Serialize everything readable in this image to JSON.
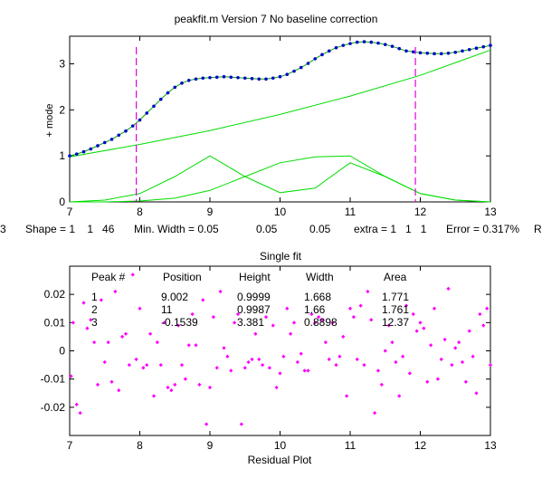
{
  "figure": {
    "background": "#ffffff",
    "colors": {
      "data": "#0000cc",
      "fit": "#00aa00",
      "components": "#00dd00",
      "markers": "#dd00dd",
      "residuals": "#ff00ff",
      "axis": "#000000"
    }
  },
  "top_title": "peakfit.m Version 7    No baseline correction",
  "param_line": {
    "left_cut": "3",
    "shape": "Shape = 1    1   46",
    "min_width": "Min. Width = 0.05",
    "w2": "0.05",
    "w3": "0.05",
    "extra": "extra = 1   1   1",
    "error": "Error = 0.317%",
    "right_cut": "R"
  },
  "bottom_title": "Single fit",
  "results_table": {
    "headers": [
      "Peak #",
      "Position",
      "Height",
      "Width",
      "Area"
    ],
    "rows": [
      [
        "1",
        "9.002",
        "0.9999",
        "1.668",
        "1.771"
      ],
      [
        "2",
        "11",
        "0.9987",
        "1.66",
        "1.761"
      ],
      [
        "3",
        "-0.1539",
        "3.381",
        "0.8898",
        "12.37"
      ]
    ]
  },
  "chart_data": [
    {
      "type": "line",
      "title": "peakfit.m Version 7    No baseline correction",
      "xlabel": "",
      "ylabel": "+ mode",
      "xlim": [
        7,
        13
      ],
      "ylim": [
        0,
        3.6
      ],
      "xticks": [
        7,
        8,
        9,
        10,
        11,
        12,
        13
      ],
      "yticks": [
        0,
        1,
        2,
        3
      ],
      "markers_x": [
        7.95,
        11.93
      ],
      "data_points": {
        "x": [
          7.0,
          7.1,
          7.2,
          7.3,
          7.4,
          7.5,
          7.6,
          7.7,
          7.8,
          7.9,
          8.0,
          8.1,
          8.2,
          8.3,
          8.4,
          8.5,
          8.6,
          8.7,
          8.8,
          8.9,
          9.0,
          9.1,
          9.2,
          9.3,
          9.4,
          9.5,
          9.6,
          9.7,
          9.8,
          9.9,
          10.0,
          10.1,
          10.2,
          10.3,
          10.4,
          10.5,
          10.6,
          10.7,
          10.8,
          10.9,
          11.0,
          11.1,
          11.2,
          11.3,
          11.4,
          11.5,
          11.6,
          11.7,
          11.8,
          11.9,
          12.0,
          12.1,
          12.2,
          12.3,
          12.4,
          12.5,
          12.6,
          12.7,
          12.8,
          12.9,
          13.0
        ],
        "y": [
          1.0,
          1.04,
          1.09,
          1.15,
          1.22,
          1.29,
          1.36,
          1.45,
          1.54,
          1.65,
          1.78,
          1.93,
          2.08,
          2.23,
          2.37,
          2.49,
          2.58,
          2.64,
          2.67,
          2.69,
          2.7,
          2.71,
          2.72,
          2.71,
          2.7,
          2.69,
          2.68,
          2.67,
          2.67,
          2.69,
          2.72,
          2.77,
          2.84,
          2.92,
          3.01,
          3.11,
          3.2,
          3.28,
          3.35,
          3.4,
          3.44,
          3.47,
          3.48,
          3.47,
          3.45,
          3.42,
          3.38,
          3.33,
          3.28,
          3.26,
          3.24,
          3.23,
          3.22,
          3.22,
          3.23,
          3.25,
          3.28,
          3.31,
          3.34,
          3.37,
          3.4
        ]
      },
      "series": [
        {
          "name": "",
          "kind": "fit",
          "x": [
            7.0,
            7.1,
            7.2,
            7.3,
            7.4,
            7.5,
            7.6,
            7.7,
            7.8,
            7.9,
            8.0,
            8.1,
            8.2,
            8.3,
            8.4,
            8.5,
            8.6,
            8.7,
            8.8,
            8.9,
            9.0,
            9.1,
            9.2,
            9.3,
            9.4,
            9.5,
            9.6,
            9.7,
            9.8,
            9.9,
            10.0,
            10.1,
            10.2,
            10.3,
            10.4,
            10.5,
            10.6,
            10.7,
            10.8,
            10.9,
            11.0,
            11.1,
            11.2,
            11.3,
            11.4,
            11.5,
            11.6,
            11.7,
            11.8,
            11.9,
            12.0,
            12.1,
            12.2,
            12.3,
            12.4,
            12.5,
            12.6,
            12.7,
            12.8,
            12.9,
            13.0
          ],
          "y": [
            1.0,
            1.04,
            1.09,
            1.15,
            1.22,
            1.29,
            1.36,
            1.45,
            1.54,
            1.65,
            1.78,
            1.93,
            2.08,
            2.23,
            2.37,
            2.49,
            2.58,
            2.64,
            2.67,
            2.69,
            2.7,
            2.71,
            2.72,
            2.71,
            2.7,
            2.69,
            2.68,
            2.67,
            2.67,
            2.69,
            2.72,
            2.77,
            2.84,
            2.92,
            3.01,
            3.11,
            3.2,
            3.28,
            3.35,
            3.4,
            3.44,
            3.47,
            3.48,
            3.47,
            3.45,
            3.42,
            3.38,
            3.33,
            3.28,
            3.26,
            3.24,
            3.23,
            3.22,
            3.22,
            3.23,
            3.25,
            3.28,
            3.31,
            3.34,
            3.37,
            3.4
          ]
        },
        {
          "name": "",
          "kind": "component",
          "x": [
            7.0,
            7.5,
            8.0,
            8.5,
            9.0,
            9.5,
            10.0,
            10.5,
            11.0,
            11.5,
            12.0,
            12.5,
            13.0
          ],
          "y": [
            0.0,
            0.04,
            0.18,
            0.55,
            1.0,
            0.55,
            0.2,
            0.3,
            0.85,
            0.55,
            0.18,
            0.04,
            0.0
          ]
        },
        {
          "name": "",
          "kind": "component",
          "x": [
            7.0,
            7.5,
            8.0,
            8.5,
            9.0,
            9.5,
            10.0,
            10.5,
            11.0,
            11.5,
            12.0,
            12.5,
            13.0
          ],
          "y": [
            0.0,
            0.0,
            0.02,
            0.08,
            0.25,
            0.55,
            0.85,
            0.98,
            1.0,
            0.55,
            0.18,
            0.04,
            0.0
          ]
        },
        {
          "name": "",
          "kind": "baseline",
          "x": [
            7.0,
            8.0,
            9.0,
            10.0,
            11.0,
            12.0,
            13.0
          ],
          "y": [
            0.98,
            1.25,
            1.55,
            1.9,
            2.3,
            2.75,
            3.3
          ]
        }
      ]
    },
    {
      "type": "scatter",
      "title": "Single fit",
      "xlabel": "Residual Plot",
      "ylabel": "",
      "xlim": [
        7,
        13
      ],
      "ylim": [
        -0.03,
        0.03
      ],
      "xticks": [
        7,
        8,
        9,
        10,
        11,
        12,
        13
      ],
      "yticks": [
        -0.02,
        -0.01,
        0,
        0.01,
        0.02
      ],
      "points": {
        "x": [
          7.02,
          7.05,
          7.1,
          7.15,
          7.2,
          7.25,
          7.3,
          7.35,
          7.4,
          7.45,
          7.5,
          7.55,
          7.6,
          7.65,
          7.7,
          7.75,
          7.8,
          7.85,
          7.9,
          7.95,
          8.0,
          8.05,
          8.1,
          8.15,
          8.2,
          8.25,
          8.3,
          8.35,
          8.4,
          8.45,
          8.5,
          8.55,
          8.6,
          8.65,
          8.7,
          8.75,
          8.8,
          8.85,
          8.9,
          8.95,
          9.0,
          9.05,
          9.1,
          9.15,
          9.2,
          9.25,
          9.3,
          9.35,
          9.4,
          9.45,
          9.5,
          9.55,
          9.6,
          9.65,
          9.7,
          9.75,
          9.8,
          9.85,
          9.9,
          9.95,
          10.0,
          10.05,
          10.1,
          10.15,
          10.2,
          10.25,
          10.3,
          10.35,
          10.4,
          10.45,
          10.5,
          10.55,
          10.6,
          10.65,
          10.7,
          10.75,
          10.8,
          10.85,
          10.9,
          10.95,
          11.0,
          11.05,
          11.1,
          11.15,
          11.2,
          11.25,
          11.3,
          11.35,
          11.4,
          11.45,
          11.5,
          11.55,
          11.6,
          11.65,
          11.7,
          11.75,
          11.8,
          11.85,
          11.9,
          11.95,
          12.0,
          12.05,
          12.1,
          12.15,
          12.2,
          12.25,
          12.3,
          12.35,
          12.4,
          12.45,
          12.5,
          12.55,
          12.6,
          12.65,
          12.7,
          12.75,
          12.8,
          12.85,
          12.9,
          12.95,
          13.0
        ],
        "y": [
          -0.009,
          0.01,
          -0.019,
          -0.022,
          0.017,
          0.008,
          0.011,
          0.003,
          -0.012,
          0.018,
          -0.004,
          0.003,
          -0.011,
          0.021,
          -0.014,
          0.005,
          0.006,
          -0.005,
          0.027,
          -0.003,
          0.015,
          -0.006,
          -0.005,
          0.006,
          -0.016,
          0.003,
          -0.005,
          0.01,
          -0.013,
          -0.014,
          -0.012,
          0.009,
          -0.005,
          -0.01,
          0.002,
          0.013,
          0.002,
          -0.012,
          0.018,
          -0.026,
          -0.013,
          0.012,
          -0.006,
          0.021,
          0.001,
          -0.002,
          -0.007,
          0.01,
          0.013,
          -0.026,
          -0.006,
          -0.004,
          -0.003,
          0.006,
          -0.003,
          -0.005,
          0.012,
          -0.006,
          0.009,
          -0.013,
          -0.008,
          -0.002,
          0.015,
          0.006,
          0.01,
          -0.004,
          -0.001,
          -0.007,
          -0.007,
          0.013,
          0.01,
          0.012,
          0.011,
          0.003,
          -0.003,
          0.01,
          -0.005,
          -0.002,
          0.005,
          -0.016,
          0.015,
          0.012,
          -0.003,
          0.016,
          -0.005,
          0.021,
          0.011,
          -0.022,
          -0.007,
          -0.012,
          0.0,
          0.009,
          0.003,
          -0.004,
          -0.016,
          -0.002,
          0.016,
          -0.008,
          0.013,
          0.007,
          0.01,
          0.008,
          -0.011,
          0.002,
          0.015,
          -0.01,
          -0.003,
          0.004,
          0.022,
          -0.005,
          0.001,
          0.003,
          -0.004,
          -0.011,
          0.007,
          -0.002,
          -0.015,
          0.013,
          0.009,
          0.015,
          -0.005
        ]
      }
    }
  ]
}
